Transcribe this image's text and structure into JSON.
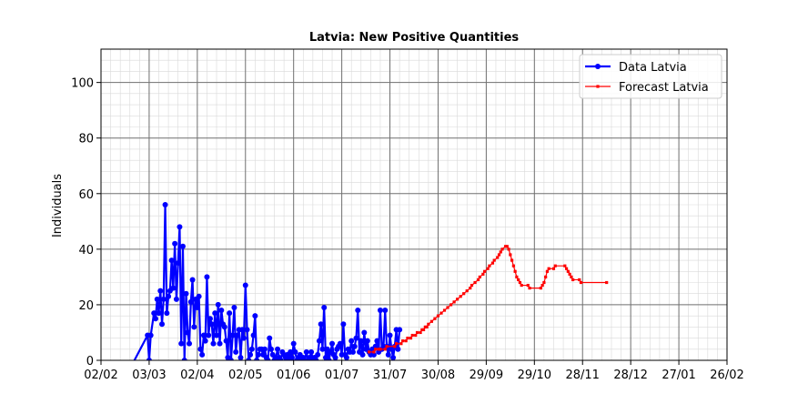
{
  "chart_data": {
    "type": "line",
    "title": "Latvia: New Positive Quantities",
    "xlabel": "",
    "ylabel": "Individuals",
    "x_axis_type": "date",
    "xlim": [
      "2020-02-02",
      "2021-02-26"
    ],
    "ylim": [
      0,
      112
    ],
    "x_ticks": [
      {
        "date": "2020-02-02",
        "label": "02/02"
      },
      {
        "date": "2020-03-03",
        "label": "03/03"
      },
      {
        "date": "2020-04-02",
        "label": "02/04"
      },
      {
        "date": "2020-05-02",
        "label": "02/05"
      },
      {
        "date": "2020-06-01",
        "label": "01/06"
      },
      {
        "date": "2020-07-01",
        "label": "01/07"
      },
      {
        "date": "2020-07-31",
        "label": "31/07"
      },
      {
        "date": "2020-08-30",
        "label": "30/08"
      },
      {
        "date": "2020-09-29",
        "label": "29/09"
      },
      {
        "date": "2020-10-29",
        "label": "29/10"
      },
      {
        "date": "2020-11-28",
        "label": "28/11"
      },
      {
        "date": "2020-12-28",
        "label": "28/12"
      },
      {
        "date": "2021-01-27",
        "label": "27/01"
      },
      {
        "date": "2021-02-26",
        "label": "26/02"
      }
    ],
    "y_ticks": [
      0,
      20,
      40,
      60,
      80,
      100
    ],
    "grid": true,
    "minor_grid": true,
    "legend_position": "top-right",
    "series": [
      {
        "name": "Data Latvia",
        "color": "#0000ff",
        "marker": "circle",
        "points": [
          [
            "2020-02-21",
            -2
          ],
          [
            "2020-03-02",
            9
          ],
          [
            "2020-03-03",
            0
          ],
          [
            "2020-03-04",
            9
          ],
          [
            "2020-03-06",
            17
          ],
          [
            "2020-03-07",
            15
          ],
          [
            "2020-03-08",
            22
          ],
          [
            "2020-03-09",
            17
          ],
          [
            "2020-03-10",
            25
          ],
          [
            "2020-03-11",
            13
          ],
          [
            "2020-03-12",
            22
          ],
          [
            "2020-03-13",
            56
          ],
          [
            "2020-03-14",
            17
          ],
          [
            "2020-03-15",
            23
          ],
          [
            "2020-03-16",
            25
          ],
          [
            "2020-03-17",
            36
          ],
          [
            "2020-03-18",
            26
          ],
          [
            "2020-03-19",
            42
          ],
          [
            "2020-03-20",
            22
          ],
          [
            "2020-03-21",
            35
          ],
          [
            "2020-03-22",
            48
          ],
          [
            "2020-03-23",
            6
          ],
          [
            "2020-03-24",
            41
          ],
          [
            "2020-03-25",
            0
          ],
          [
            "2020-03-26",
            24
          ],
          [
            "2020-03-27",
            10
          ],
          [
            "2020-03-28",
            6
          ],
          [
            "2020-03-29",
            21
          ],
          [
            "2020-03-30",
            29
          ],
          [
            "2020-03-31",
            12
          ],
          [
            "2020-04-01",
            22
          ],
          [
            "2020-04-02",
            19
          ],
          [
            "2020-04-03",
            23
          ],
          [
            "2020-04-04",
            4
          ],
          [
            "2020-04-05",
            2
          ],
          [
            "2020-04-06",
            9
          ],
          [
            "2020-04-07",
            7
          ],
          [
            "2020-04-08",
            30
          ],
          [
            "2020-04-09",
            9
          ],
          [
            "2020-04-10",
            15
          ],
          [
            "2020-04-11",
            13
          ],
          [
            "2020-04-12",
            6
          ],
          [
            "2020-04-13",
            17
          ],
          [
            "2020-04-14",
            9
          ],
          [
            "2020-04-15",
            20
          ],
          [
            "2020-04-16",
            6
          ],
          [
            "2020-04-17",
            18
          ],
          [
            "2020-04-18",
            13
          ],
          [
            "2020-04-19",
            12
          ],
          [
            "2020-04-20",
            7
          ],
          [
            "2020-04-21",
            1
          ],
          [
            "2020-04-22",
            17
          ],
          [
            "2020-04-23",
            0
          ],
          [
            "2020-04-24",
            9
          ],
          [
            "2020-04-25",
            19
          ],
          [
            "2020-04-26",
            3
          ],
          [
            "2020-04-27",
            9
          ],
          [
            "2020-04-28",
            11
          ],
          [
            "2020-04-29",
            1
          ],
          [
            "2020-04-30",
            11
          ],
          [
            "2020-05-01",
            8
          ],
          [
            "2020-05-02",
            27
          ],
          [
            "2020-05-03",
            11
          ],
          [
            "2020-05-04",
            0
          ],
          [
            "2020-05-05",
            2
          ],
          [
            "2020-05-06",
            4
          ],
          [
            "2020-05-07",
            9
          ],
          [
            "2020-05-08",
            16
          ],
          [
            "2020-05-09",
            0
          ],
          [
            "2020-05-10",
            2
          ],
          [
            "2020-05-11",
            4
          ],
          [
            "2020-05-12",
            4
          ],
          [
            "2020-05-13",
            2
          ],
          [
            "2020-05-14",
            4
          ],
          [
            "2020-05-15",
            1
          ],
          [
            "2020-05-16",
            0
          ],
          [
            "2020-05-17",
            8
          ],
          [
            "2020-05-18",
            4
          ],
          [
            "2020-05-19",
            2
          ],
          [
            "2020-05-20",
            0
          ],
          [
            "2020-05-21",
            1
          ],
          [
            "2020-05-22",
            4
          ],
          [
            "2020-05-23",
            1
          ],
          [
            "2020-05-24",
            0
          ],
          [
            "2020-05-25",
            3
          ],
          [
            "2020-05-26",
            2
          ],
          [
            "2020-05-27",
            1
          ],
          [
            "2020-05-28",
            2
          ],
          [
            "2020-05-29",
            0
          ],
          [
            "2020-05-30",
            3
          ],
          [
            "2020-05-31",
            1
          ],
          [
            "2020-06-01",
            6
          ],
          [
            "2020-06-02",
            3
          ],
          [
            "2020-06-03",
            0
          ],
          [
            "2020-06-04",
            1
          ],
          [
            "2020-06-05",
            2
          ],
          [
            "2020-06-06",
            0
          ],
          [
            "2020-06-07",
            1
          ],
          [
            "2020-06-08",
            0
          ],
          [
            "2020-06-09",
            3
          ],
          [
            "2020-06-10",
            0
          ],
          [
            "2020-06-11",
            1
          ],
          [
            "2020-06-12",
            3
          ],
          [
            "2020-06-13",
            0
          ],
          [
            "2020-06-14",
            1
          ],
          [
            "2020-06-15",
            0
          ],
          [
            "2020-06-16",
            2
          ],
          [
            "2020-06-17",
            7
          ],
          [
            "2020-06-18",
            13
          ],
          [
            "2020-06-19",
            4
          ],
          [
            "2020-06-20",
            19
          ],
          [
            "2020-06-21",
            1
          ],
          [
            "2020-06-22",
            4
          ],
          [
            "2020-06-23",
            0
          ],
          [
            "2020-06-24",
            3
          ],
          [
            "2020-06-25",
            6
          ],
          [
            "2020-06-26",
            2
          ],
          [
            "2020-06-27",
            1
          ],
          [
            "2020-06-28",
            4
          ],
          [
            "2020-06-29",
            5
          ],
          [
            "2020-06-30",
            6
          ],
          [
            "2020-07-01",
            2
          ],
          [
            "2020-07-02",
            13
          ],
          [
            "2020-07-03",
            2
          ],
          [
            "2020-07-04",
            1
          ],
          [
            "2020-07-05",
            4
          ],
          [
            "2020-07-06",
            3
          ],
          [
            "2020-07-07",
            7
          ],
          [
            "2020-07-08",
            3
          ],
          [
            "2020-07-09",
            5
          ],
          [
            "2020-07-10",
            8
          ],
          [
            "2020-07-11",
            18
          ],
          [
            "2020-07-12",
            3
          ],
          [
            "2020-07-13",
            7
          ],
          [
            "2020-07-14",
            2
          ],
          [
            "2020-07-15",
            10
          ],
          [
            "2020-07-16",
            4
          ],
          [
            "2020-07-17",
            7
          ],
          [
            "2020-07-18",
            3
          ],
          [
            "2020-07-19",
            2
          ],
          [
            "2020-07-20",
            4
          ],
          [
            "2020-07-21",
            2
          ],
          [
            "2020-07-22",
            5
          ],
          [
            "2020-07-23",
            7
          ],
          [
            "2020-07-24",
            3
          ],
          [
            "2020-07-25",
            18
          ],
          [
            "2020-07-26",
            4
          ],
          [
            "2020-07-27",
            5
          ],
          [
            "2020-07-28",
            18
          ],
          [
            "2020-07-29",
            5
          ],
          [
            "2020-07-30",
            2
          ],
          [
            "2020-07-31",
            9
          ],
          [
            "2020-08-01",
            4
          ],
          [
            "2020-08-02",
            1
          ],
          [
            "2020-08-03",
            5
          ],
          [
            "2020-08-04",
            11
          ],
          [
            "2020-08-05",
            4
          ],
          [
            "2020-08-06",
            11
          ]
        ]
      },
      {
        "name": "Forecast Latvia",
        "color": "#ff0000",
        "marker": "dot",
        "points": [
          [
            "2020-07-18",
            3
          ],
          [
            "2020-07-21",
            3
          ],
          [
            "2020-07-22",
            4
          ],
          [
            "2020-07-24",
            4
          ],
          [
            "2020-07-25",
            4
          ],
          [
            "2020-07-28",
            4
          ],
          [
            "2020-07-29",
            5
          ],
          [
            "2020-08-03",
            5
          ],
          [
            "2020-08-04",
            6
          ],
          [
            "2020-08-07",
            6
          ],
          [
            "2020-08-08",
            7
          ],
          [
            "2020-08-10",
            7
          ],
          [
            "2020-08-11",
            8
          ],
          [
            "2020-08-13",
            8
          ],
          [
            "2020-08-14",
            9
          ],
          [
            "2020-08-16",
            9
          ],
          [
            "2020-08-17",
            10
          ],
          [
            "2020-08-19",
            10
          ],
          [
            "2020-08-20",
            11
          ],
          [
            "2020-08-21",
            11
          ],
          [
            "2020-08-22",
            12
          ],
          [
            "2020-08-23",
            12
          ],
          [
            "2020-08-24",
            13
          ],
          [
            "2020-08-26",
            14
          ],
          [
            "2020-08-28",
            15
          ],
          [
            "2020-08-30",
            16
          ],
          [
            "2020-09-01",
            17
          ],
          [
            "2020-09-03",
            18
          ],
          [
            "2020-09-05",
            19
          ],
          [
            "2020-09-07",
            20
          ],
          [
            "2020-09-09",
            21
          ],
          [
            "2020-09-11",
            22
          ],
          [
            "2020-09-13",
            23
          ],
          [
            "2020-09-15",
            24
          ],
          [
            "2020-09-17",
            25
          ],
          [
            "2020-09-19",
            26
          ],
          [
            "2020-09-20",
            27
          ],
          [
            "2020-09-22",
            28
          ],
          [
            "2020-09-24",
            29
          ],
          [
            "2020-09-25",
            30
          ],
          [
            "2020-09-27",
            31
          ],
          [
            "2020-09-28",
            32
          ],
          [
            "2020-09-30",
            33
          ],
          [
            "2020-10-01",
            34
          ],
          [
            "2020-10-03",
            35
          ],
          [
            "2020-10-04",
            36
          ],
          [
            "2020-10-06",
            37
          ],
          [
            "2020-10-07",
            38
          ],
          [
            "2020-10-08",
            39
          ],
          [
            "2020-10-09",
            40
          ],
          [
            "2020-10-11",
            41
          ],
          [
            "2020-10-12",
            41
          ],
          [
            "2020-10-13",
            40
          ],
          [
            "2020-10-14",
            38
          ],
          [
            "2020-10-15",
            36
          ],
          [
            "2020-10-16",
            34
          ],
          [
            "2020-10-17",
            32
          ],
          [
            "2020-10-18",
            30
          ],
          [
            "2020-10-19",
            29
          ],
          [
            "2020-10-20",
            28
          ],
          [
            "2020-10-21",
            27
          ],
          [
            "2020-10-25",
            27
          ],
          [
            "2020-10-26",
            26
          ],
          [
            "2020-11-02",
            26
          ],
          [
            "2020-11-03",
            27
          ],
          [
            "2020-11-04",
            28
          ],
          [
            "2020-11-05",
            30
          ],
          [
            "2020-11-06",
            32
          ],
          [
            "2020-11-07",
            33
          ],
          [
            "2020-11-10",
            33
          ],
          [
            "2020-11-11",
            34
          ],
          [
            "2020-11-17",
            34
          ],
          [
            "2020-11-18",
            33
          ],
          [
            "2020-11-19",
            32
          ],
          [
            "2020-11-20",
            31
          ],
          [
            "2020-11-21",
            30
          ],
          [
            "2020-11-22",
            29
          ],
          [
            "2020-11-26",
            29
          ],
          [
            "2020-11-27",
            28
          ],
          [
            "2020-12-13",
            28
          ]
        ]
      }
    ]
  }
}
